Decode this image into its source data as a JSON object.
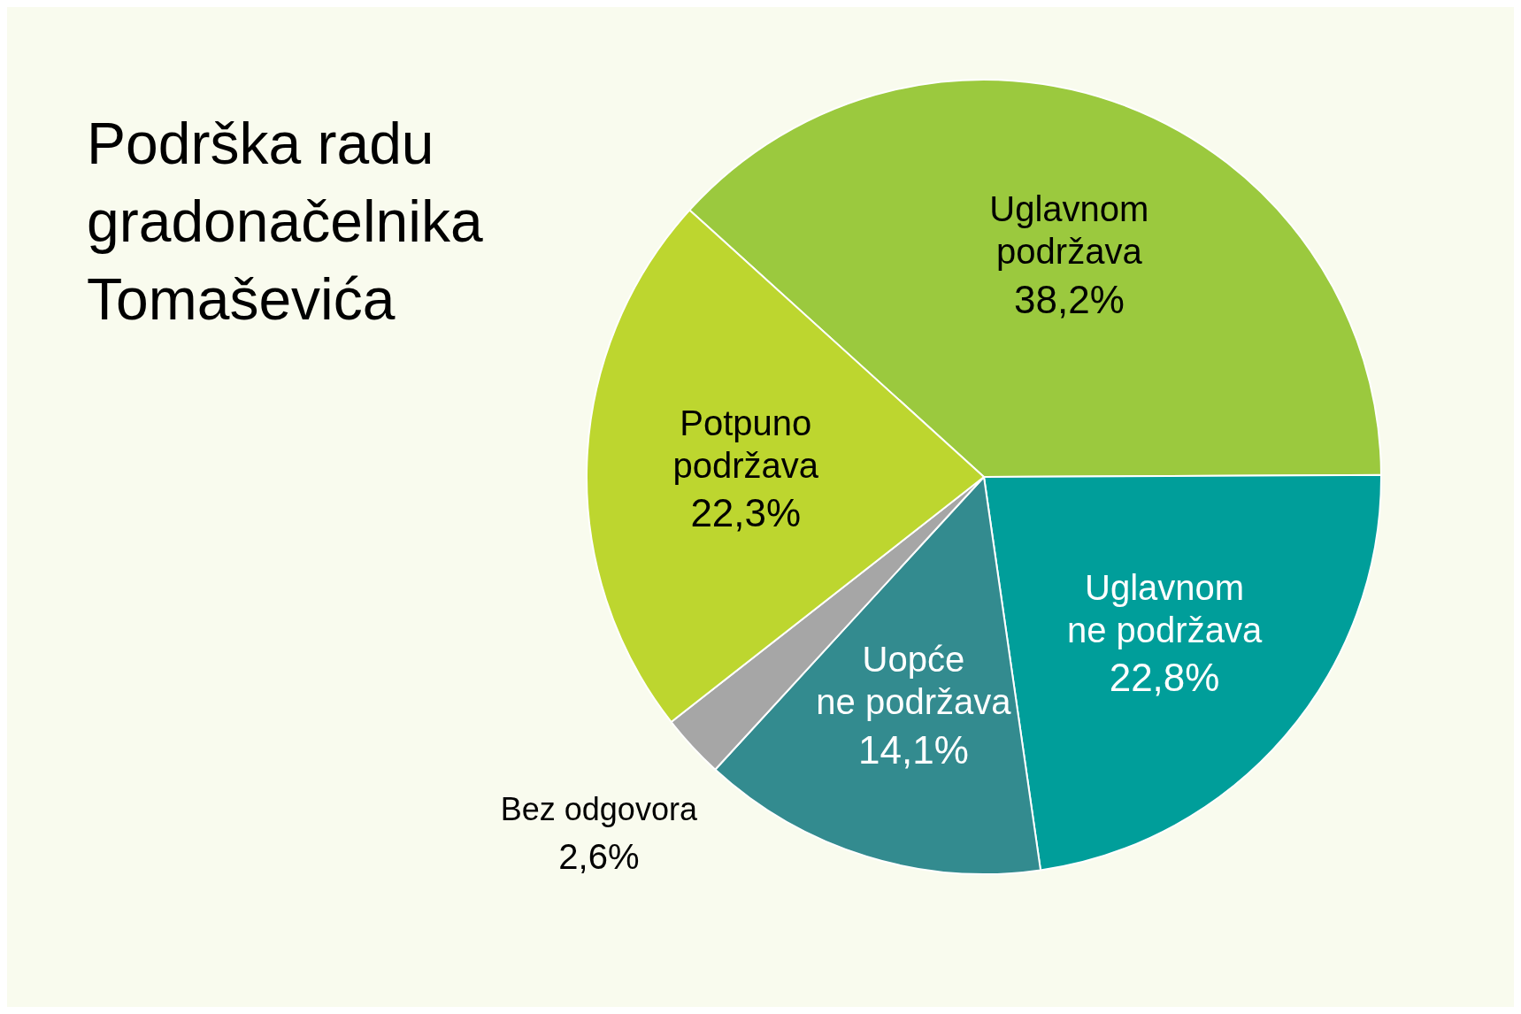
{
  "chart_data": {
    "type": "pie",
    "title": "Podrška radu gradonačelnika Tomaševića",
    "categories": [
      "Uglavnom podržava",
      "Uglavnom ne podržava",
      "Uopće ne podržava",
      "Bez odgovora",
      "Potpuno podržava"
    ],
    "values": [
      38.2,
      22.8,
      14.1,
      2.6,
      22.3
    ],
    "colors": [
      "#9bc93e",
      "#009e9a",
      "#338b8f",
      "#a6a6a6",
      "#bdd62f"
    ],
    "value_labels": [
      "38,2%",
      "22,8%",
      "14,1%",
      "2,6%",
      "22,3%"
    ],
    "legend": false
  }
}
